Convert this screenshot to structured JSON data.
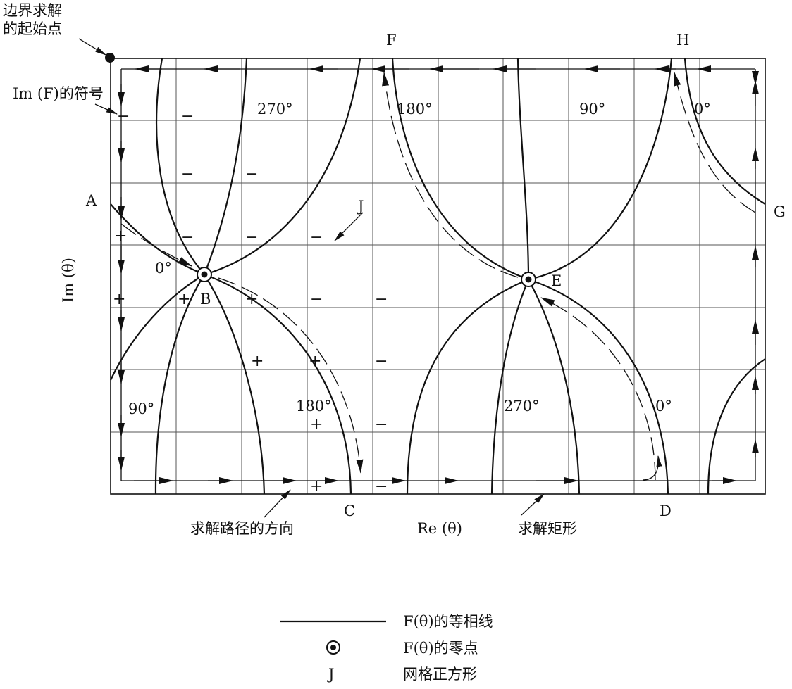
{
  "annotations": {
    "start_point": [
      "边界求解",
      "的起始点"
    ],
    "sign_of_im": "Im (F)的符号",
    "path_direction": "求解路径的方向",
    "solution_rectangle": "求解矩形"
  },
  "axes": {
    "x_label": "Re (θ)",
    "y_label": "Im (θ)"
  },
  "points": {
    "A": "A",
    "B": "B",
    "C": "C",
    "D": "D",
    "E": "E",
    "F": "F",
    "G": "G",
    "H": "H",
    "J": "J"
  },
  "phase_labels": {
    "b_0": "0°",
    "b_90": "90°",
    "b_180": "180°",
    "b_270": "270°",
    "e_0": "0°",
    "e_90": "90°",
    "e_180": "180°",
    "e_270": "270°"
  },
  "signs": {
    "plus": "+",
    "minus": "−"
  },
  "legend": {
    "contour": "F(θ)的等相线",
    "zero": "F(θ)的零点",
    "grid_key": "J",
    "grid": "网格正方形"
  }
}
